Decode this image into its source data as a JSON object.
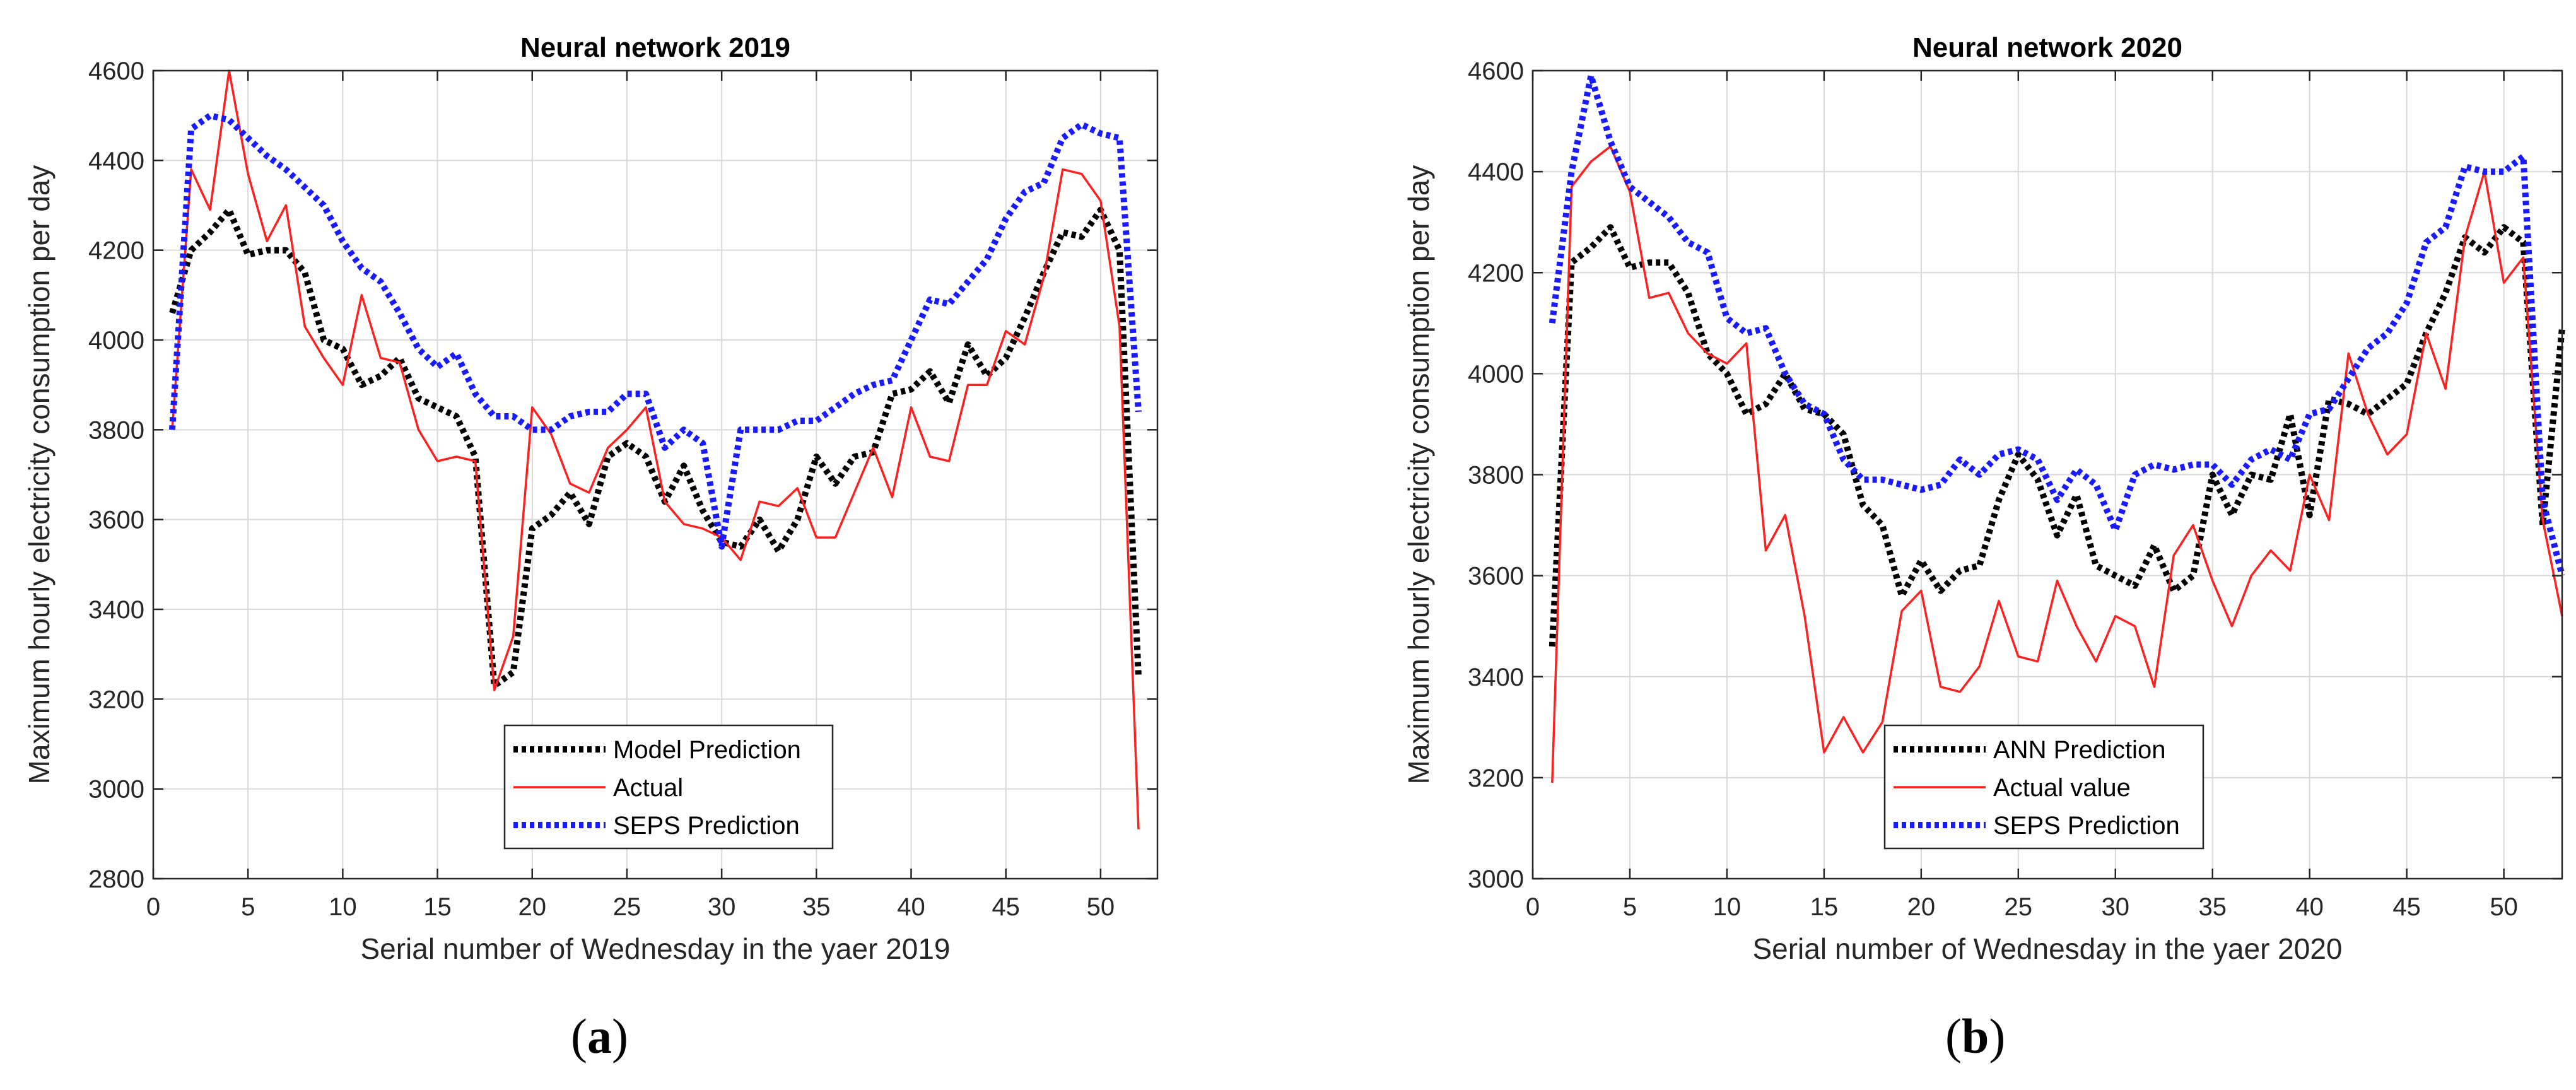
{
  "captions": [
    {
      "prefix": "(",
      "letter": "a",
      "suffix": ")"
    },
    {
      "prefix": "(",
      "letter": "b",
      "suffix": ")"
    }
  ],
  "colors": {
    "model": "#000000",
    "actual": "#ff2020",
    "seps": "#1a1aff",
    "grid": "#d9d9d9"
  },
  "chart_data": [
    {
      "type": "line",
      "title": "Neural network 2019",
      "xlabel": "Serial number of Wednesday in the yaer 2019",
      "ylabel": "Maximum hourly electricity consumption per day",
      "xlim": [
        0,
        53
      ],
      "ylim": [
        2800,
        4600
      ],
      "xticks": [
        0,
        5,
        10,
        15,
        20,
        25,
        30,
        35,
        40,
        45,
        50
      ],
      "yticks": [
        2800,
        3000,
        3200,
        3400,
        3600,
        3800,
        4000,
        4200,
        4400,
        4600
      ],
      "grid": true,
      "legend_location": "bottom-center",
      "x": [
        1,
        2,
        3,
        4,
        5,
        6,
        7,
        8,
        9,
        10,
        11,
        12,
        13,
        14,
        15,
        16,
        17,
        18,
        19,
        20,
        21,
        22,
        23,
        24,
        25,
        26,
        27,
        28,
        29,
        30,
        31,
        32,
        33,
        34,
        35,
        36,
        37,
        38,
        39,
        40,
        41,
        42,
        43,
        44,
        45,
        46,
        47,
        48,
        49,
        50,
        51,
        52
      ],
      "series": [
        {
          "name": "Model Prediction",
          "style": "dotted",
          "color": "#000000",
          "values": [
            4060,
            4200,
            4240,
            4290,
            4190,
            4200,
            4200,
            4150,
            4000,
            3980,
            3900,
            3920,
            3960,
            3870,
            3850,
            3830,
            3740,
            3230,
            3260,
            3580,
            3610,
            3660,
            3590,
            3740,
            3770,
            3740,
            3640,
            3720,
            3620,
            3550,
            3540,
            3600,
            3530,
            3600,
            3740,
            3680,
            3740,
            3750,
            3880,
            3890,
            3930,
            3860,
            3990,
            3920,
            3960,
            4050,
            4150,
            4240,
            4230,
            4290,
            4200,
            3250
          ]
        },
        {
          "name": "Actual",
          "style": "solid",
          "color": "#ff2020",
          "values": [
            3800,
            4380,
            4290,
            4600,
            4370,
            4220,
            4300,
            4030,
            3960,
            3900,
            4100,
            3960,
            3950,
            3800,
            3730,
            3740,
            3730,
            3220,
            3340,
            3850,
            3790,
            3680,
            3660,
            3760,
            3800,
            3850,
            3640,
            3590,
            3580,
            3560,
            3510,
            3640,
            3630,
            3670,
            3560,
            3560,
            3660,
            3760,
            3650,
            3850,
            3740,
            3730,
            3900,
            3900,
            4020,
            3990,
            4140,
            4380,
            4370,
            4310,
            4030,
            2910
          ]
        },
        {
          "name": "SEPS Prediction",
          "style": "dotted",
          "color": "#1a1aff",
          "values": [
            3800,
            4470,
            4500,
            4490,
            4450,
            4410,
            4380,
            4340,
            4300,
            4220,
            4160,
            4130,
            4060,
            3980,
            3940,
            3970,
            3880,
            3830,
            3830,
            3800,
            3800,
            3830,
            3840,
            3840,
            3880,
            3880,
            3760,
            3800,
            3770,
            3540,
            3800,
            3800,
            3800,
            3820,
            3820,
            3850,
            3880,
            3900,
            3910,
            4000,
            4090,
            4080,
            4130,
            4180,
            4270,
            4330,
            4350,
            4450,
            4480,
            4460,
            4450,
            3840
          ]
        }
      ]
    },
    {
      "type": "line",
      "title": "Neural network 2020",
      "xlabel": "Serial number of Wednesday in the yaer 2020",
      "ylabel": "Maximum hourly electricity consumption per day",
      "xlim": [
        0,
        53
      ],
      "ylim": [
        3000,
        4600
      ],
      "xticks": [
        0,
        5,
        10,
        15,
        20,
        25,
        30,
        35,
        40,
        45,
        50
      ],
      "yticks": [
        3000,
        3200,
        3400,
        3600,
        3800,
        4000,
        4200,
        4400,
        4600
      ],
      "grid": true,
      "legend_location": "bottom-center",
      "x": [
        1,
        2,
        3,
        4,
        5,
        6,
        7,
        8,
        9,
        10,
        11,
        12,
        13,
        14,
        15,
        16,
        17,
        18,
        19,
        20,
        21,
        22,
        23,
        24,
        25,
        26,
        27,
        28,
        29,
        30,
        31,
        32,
        33,
        34,
        35,
        36,
        37,
        38,
        39,
        40,
        41,
        42,
        43,
        44,
        45,
        46,
        47,
        48,
        49,
        50,
        51,
        52,
        53
      ],
      "series": [
        {
          "name": "ANN Prediction",
          "style": "dotted",
          "color": "#000000",
          "values": [
            3460,
            4220,
            4250,
            4290,
            4210,
            4220,
            4220,
            4160,
            4040,
            4000,
            3920,
            3940,
            4000,
            3930,
            3920,
            3880,
            3740,
            3700,
            3560,
            3630,
            3570,
            3610,
            3620,
            3750,
            3840,
            3790,
            3680,
            3760,
            3620,
            3600,
            3580,
            3660,
            3570,
            3600,
            3800,
            3720,
            3800,
            3790,
            3920,
            3720,
            3950,
            3940,
            3920,
            3950,
            3980,
            4080,
            4160,
            4270,
            4240,
            4290,
            4260,
            3700,
            4090
          ]
        },
        {
          "name": "Actual value",
          "style": "solid",
          "color": "#ff2020",
          "values": [
            3190,
            4370,
            4420,
            4450,
            4360,
            4150,
            4160,
            4080,
            4040,
            4020,
            4060,
            3650,
            3720,
            3520,
            3250,
            3320,
            3250,
            3310,
            3530,
            3570,
            3380,
            3370,
            3420,
            3550,
            3440,
            3430,
            3590,
            3500,
            3430,
            3520,
            3500,
            3380,
            3640,
            3700,
            3590,
            3500,
            3600,
            3650,
            3610,
            3800,
            3710,
            4040,
            3920,
            3840,
            3880,
            4080,
            3970,
            4270,
            4400,
            4180,
            4230,
            3710,
            3520
          ]
        },
        {
          "name": "SEPS Prediction",
          "style": "dotted",
          "color": "#1a1aff",
          "values": [
            4100,
            4400,
            4590,
            4460,
            4370,
            4340,
            4310,
            4260,
            4240,
            4110,
            4080,
            4090,
            4000,
            3940,
            3920,
            3830,
            3790,
            3790,
            3780,
            3770,
            3780,
            3830,
            3800,
            3840,
            3850,
            3830,
            3750,
            3810,
            3780,
            3690,
            3800,
            3820,
            3810,
            3820,
            3820,
            3780,
            3830,
            3850,
            3830,
            3920,
            3930,
            3990,
            4050,
            4080,
            4140,
            4260,
            4290,
            4410,
            4400,
            4400,
            4430,
            3750,
            3600
          ]
        }
      ]
    }
  ]
}
